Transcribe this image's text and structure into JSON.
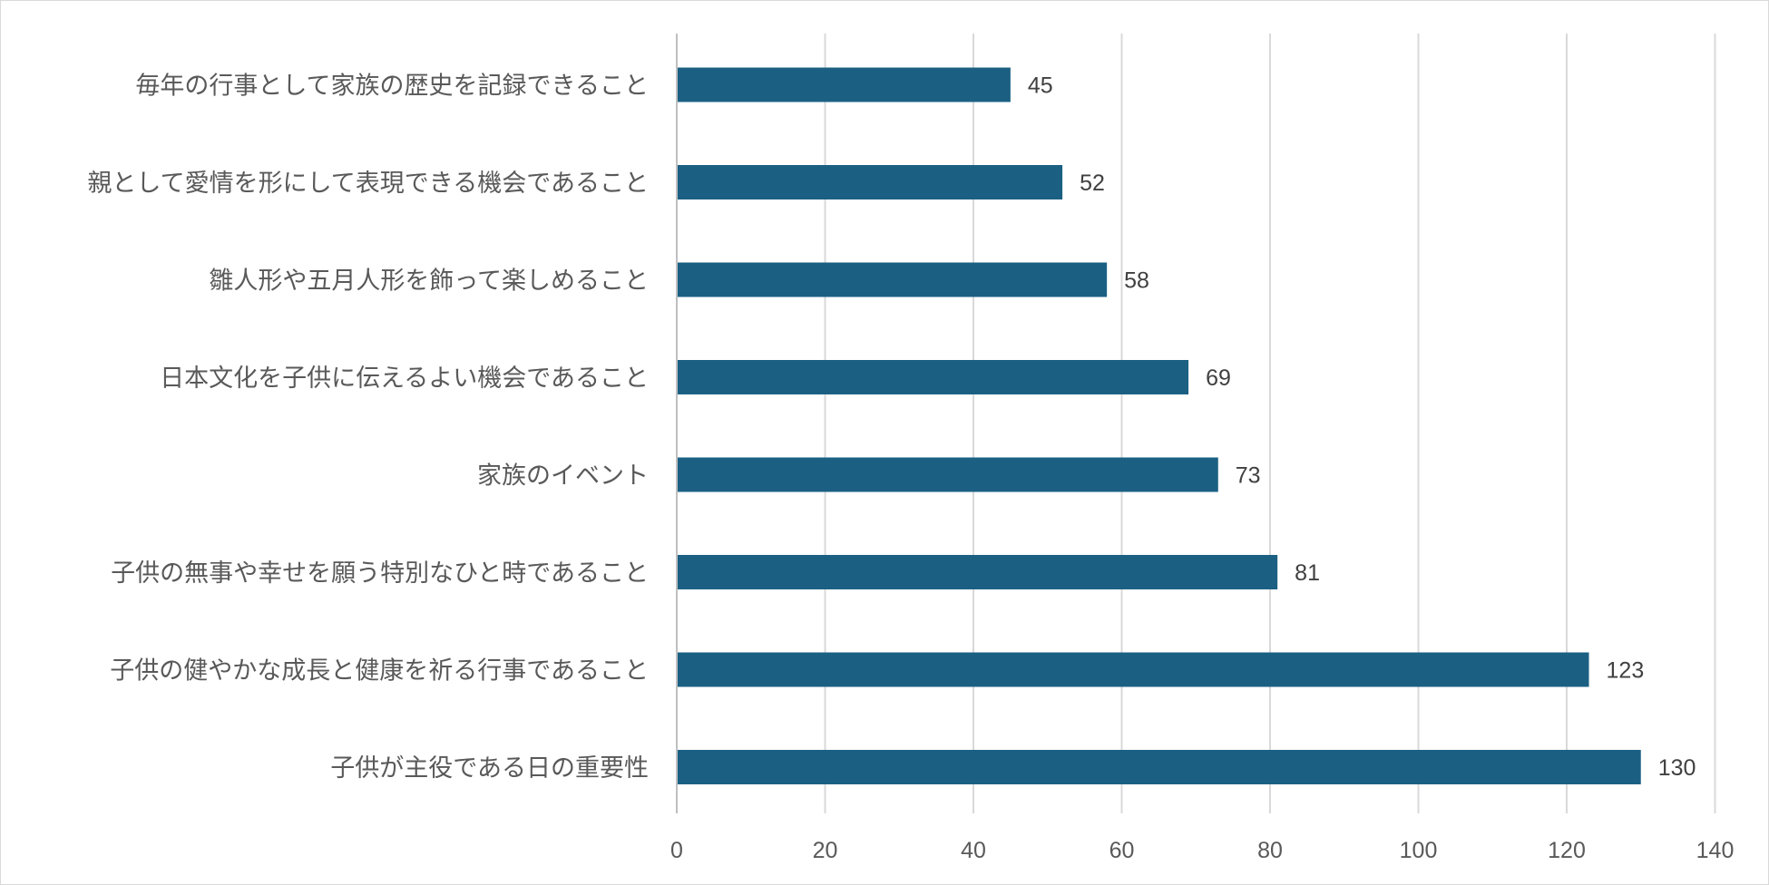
{
  "chart_data": {
    "type": "bar",
    "orientation": "horizontal",
    "categories": [
      "子供が主役である日の重要性",
      "子供の健やかな成長と健康を祈る行事であること",
      "子供の無事や幸せを願う特別なひと時であること",
      "家族のイベント",
      "日本文化を子供に伝えるよい機会であること",
      "雛人形や五月人形を飾って楽しめること",
      "親として愛情を形にして表現できる機会であること",
      "毎年の行事として家族の歴史を記録できること"
    ],
    "values": [
      130,
      123,
      81,
      73,
      69,
      58,
      52,
      45
    ],
    "xlim": [
      0,
      140
    ],
    "x_ticks": [
      0,
      20,
      40,
      60,
      80,
      100,
      120,
      140
    ],
    "title": "",
    "xlabel": "",
    "ylabel": "",
    "grid": "vertical",
    "legend": "none",
    "data_labels": true,
    "colors": {
      "bar": "#1b6083",
      "grid": "#d9d9d9",
      "axis": "#bfbfbf"
    }
  }
}
